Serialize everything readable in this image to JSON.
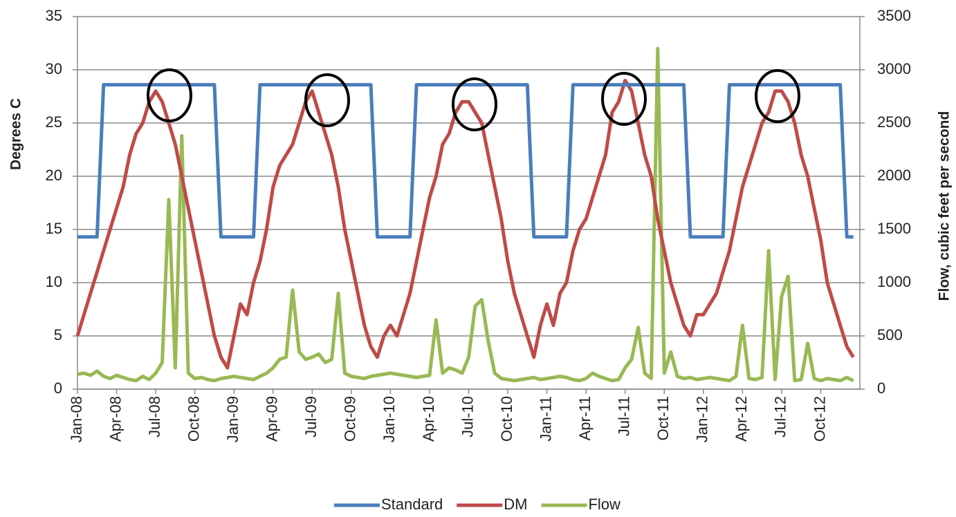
{
  "chart_data": {
    "type": "line",
    "y_label": "Degrees C",
    "y2_label": "Flow, cubic feet per second",
    "categories": [
      "Jan-08",
      null,
      null,
      null,
      null,
      null,
      "Apr-08",
      null,
      null,
      null,
      null,
      null,
      "Jul-08",
      null,
      null,
      null,
      null,
      null,
      "Oct-08",
      null,
      null,
      null,
      null,
      null,
      "Jan-09",
      null,
      null,
      null,
      null,
      null,
      "Apr-09",
      null,
      null,
      null,
      null,
      null,
      "Jul-09",
      null,
      null,
      null,
      null,
      null,
      "Oct-09",
      null,
      null,
      null,
      null,
      null,
      "Jan-10",
      null,
      null,
      null,
      null,
      null,
      "Apr-10",
      null,
      null,
      null,
      null,
      null,
      "Jul-10",
      null,
      null,
      null,
      null,
      null,
      "Oct-10",
      null,
      null,
      null,
      null,
      null,
      "Jan-11",
      null,
      null,
      null,
      null,
      null,
      "Apr-11",
      null,
      null,
      null,
      null,
      null,
      "Jul-11",
      null,
      null,
      null,
      null,
      null,
      "Oct-11",
      null,
      null,
      null,
      null,
      null,
      "Jan-12",
      null,
      null,
      null,
      null,
      null,
      "Apr-12",
      null,
      null,
      null,
      null,
      null,
      "Jul-12",
      null,
      null,
      null,
      null,
      null,
      "Oct-12",
      null,
      null,
      null,
      null,
      null
    ],
    "series": [
      {
        "name": "Standard",
        "color": "#4a7ebb",
        "axis": "y",
        "values": [
          14.3,
          14.3,
          14.3,
          14.3,
          28.6,
          28.6,
          28.6,
          28.6,
          28.6,
          28.6,
          28.6,
          28.6,
          28.6,
          28.6,
          28.6,
          28.6,
          28.6,
          28.6,
          28.6,
          28.6,
          28.6,
          28.6,
          14.3,
          14.3,
          14.3,
          14.3,
          14.3,
          14.3,
          28.6,
          28.6,
          28.6,
          28.6,
          28.6,
          28.6,
          28.6,
          28.6,
          28.6,
          28.6,
          28.6,
          28.6,
          28.6,
          28.6,
          28.6,
          28.6,
          28.6,
          28.6,
          14.3,
          14.3,
          14.3,
          14.3,
          14.3,
          14.3,
          28.6,
          28.6,
          28.6,
          28.6,
          28.6,
          28.6,
          28.6,
          28.6,
          28.6,
          28.6,
          28.6,
          28.6,
          28.6,
          28.6,
          28.6,
          28.6,
          28.6,
          28.6,
          14.3,
          14.3,
          14.3,
          14.3,
          14.3,
          14.3,
          28.6,
          28.6,
          28.6,
          28.6,
          28.6,
          28.6,
          28.6,
          28.6,
          28.6,
          28.6,
          28.6,
          28.6,
          28.6,
          28.6,
          28.6,
          28.6,
          28.6,
          28.6,
          14.3,
          14.3,
          14.3,
          14.3,
          14.3,
          14.3,
          28.6,
          28.6,
          28.6,
          28.6,
          28.6,
          28.6,
          28.6,
          28.6,
          28.6,
          28.6,
          28.6,
          28.6,
          28.6,
          28.6,
          28.6,
          28.6,
          28.6,
          28.6,
          14.3,
          14.3
        ]
      },
      {
        "name": "DM",
        "color": "#be4b48",
        "axis": "y",
        "values": [
          5,
          7,
          9,
          11,
          13,
          15,
          17,
          19,
          22,
          24,
          25,
          27,
          28,
          27,
          25,
          23,
          20,
          17,
          14,
          11,
          8,
          5,
          3,
          2,
          5,
          8,
          7,
          10,
          12,
          15,
          19,
          21,
          22,
          23,
          25,
          27,
          28,
          26,
          24,
          22,
          19,
          15,
          12,
          9,
          6,
          4,
          3,
          5,
          6,
          5,
          7,
          9,
          12,
          15,
          18,
          20,
          23,
          24,
          26,
          27,
          27,
          26,
          25,
          22,
          19,
          16,
          12,
          9,
          7,
          5,
          3,
          6,
          8,
          6,
          9,
          10,
          13,
          15,
          16,
          18,
          20,
          22,
          26,
          27,
          29,
          28,
          25,
          22,
          20,
          16,
          13,
          10,
          8,
          6,
          5,
          7,
          7,
          8,
          9,
          11,
          13,
          16,
          19,
          21,
          23,
          25,
          26,
          28,
          28,
          27,
          25,
          22,
          20,
          17,
          14,
          10,
          8,
          6,
          4,
          3
        ]
      },
      {
        "name": "Flow",
        "color": "#98b954",
        "axis": "y2",
        "values": [
          140,
          150,
          130,
          170,
          120,
          100,
          130,
          110,
          90,
          80,
          120,
          90,
          150,
          250,
          1780,
          200,
          2380,
          150,
          100,
          110,
          90,
          80,
          100,
          110,
          120,
          110,
          100,
          90,
          120,
          150,
          200,
          280,
          300,
          930,
          350,
          280,
          300,
          330,
          250,
          280,
          900,
          150,
          120,
          110,
          100,
          120,
          130,
          140,
          150,
          140,
          130,
          120,
          110,
          120,
          130,
          650,
          150,
          200,
          180,
          150,
          300,
          780,
          840,
          450,
          150,
          100,
          90,
          80,
          90,
          100,
          110,
          90,
          100,
          110,
          120,
          110,
          90,
          80,
          100,
          150,
          120,
          100,
          80,
          90,
          200,
          280,
          580,
          150,
          100,
          3200,
          150,
          350,
          120,
          100,
          110,
          90,
          100,
          110,
          100,
          90,
          80,
          120,
          600,
          100,
          90,
          110,
          1300,
          90,
          870,
          1060,
          80,
          90,
          430,
          100,
          80,
          100,
          90,
          80,
          110,
          80
        ]
      }
    ],
    "ylim": [
      0,
      35
    ],
    "yticks": [
      0,
      5,
      10,
      15,
      20,
      25,
      30,
      35
    ],
    "y2lim": [
      0,
      3500
    ],
    "y2ticks": [
      0,
      500,
      1000,
      1500,
      2000,
      2500,
      3000,
      3500
    ],
    "grid": true,
    "legend": "bottom"
  }
}
